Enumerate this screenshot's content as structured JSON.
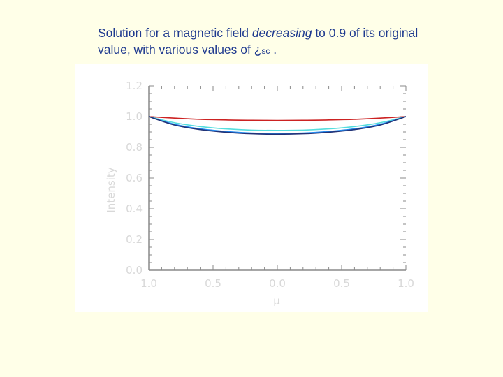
{
  "caption": {
    "line1_before": "Solution for a magnetic field ",
    "line1_em": "decreasing",
    "line1_after": " to 0.9 of its original",
    "line2": "value, with various values of ¿",
    "line2_sub": "sc",
    "line2_end": " ."
  },
  "chart_data": {
    "type": "line",
    "title": "",
    "xlabel": "μ",
    "ylabel": "Intensity",
    "xlim": [
      -1.0,
      1.0
    ],
    "ylim": [
      0.0,
      1.2
    ],
    "x_tick_values": [
      -1.0,
      -0.5,
      0.0,
      0.5,
      1.0
    ],
    "x_tick_labels": [
      "1.0",
      "0.5",
      "0.0",
      "0.5",
      "1.0"
    ],
    "y_tick_values": [
      0.0,
      0.2,
      0.4,
      0.6,
      0.8,
      1.0,
      1.2
    ],
    "y_tick_labels": [
      "0.0",
      "0.2",
      "0.4",
      "0.6",
      "0.8",
      "1.0",
      "1.2"
    ],
    "grid": false,
    "x": [
      -1.0,
      -0.8,
      -0.6,
      -0.4,
      -0.2,
      0.0,
      0.2,
      0.4,
      0.6,
      0.8,
      1.0
    ],
    "series": [
      {
        "color": "#cc2222",
        "values": [
          1.0,
          0.99,
          0.982,
          0.978,
          0.976,
          0.975,
          0.976,
          0.978,
          0.982,
          0.99,
          1.0
        ]
      },
      {
        "color": "#55dddd",
        "values": [
          1.0,
          0.96,
          0.935,
          0.92,
          0.912,
          0.91,
          0.912,
          0.92,
          0.935,
          0.96,
          1.0
        ]
      },
      {
        "color": "#2288ee",
        "values": [
          1.0,
          0.95,
          0.92,
          0.903,
          0.893,
          0.89,
          0.893,
          0.903,
          0.92,
          0.95,
          1.0
        ]
      },
      {
        "color": "#223377",
        "values": [
          1.0,
          0.945,
          0.915,
          0.898,
          0.888,
          0.885,
          0.888,
          0.898,
          0.915,
          0.945,
          1.0
        ]
      }
    ]
  }
}
